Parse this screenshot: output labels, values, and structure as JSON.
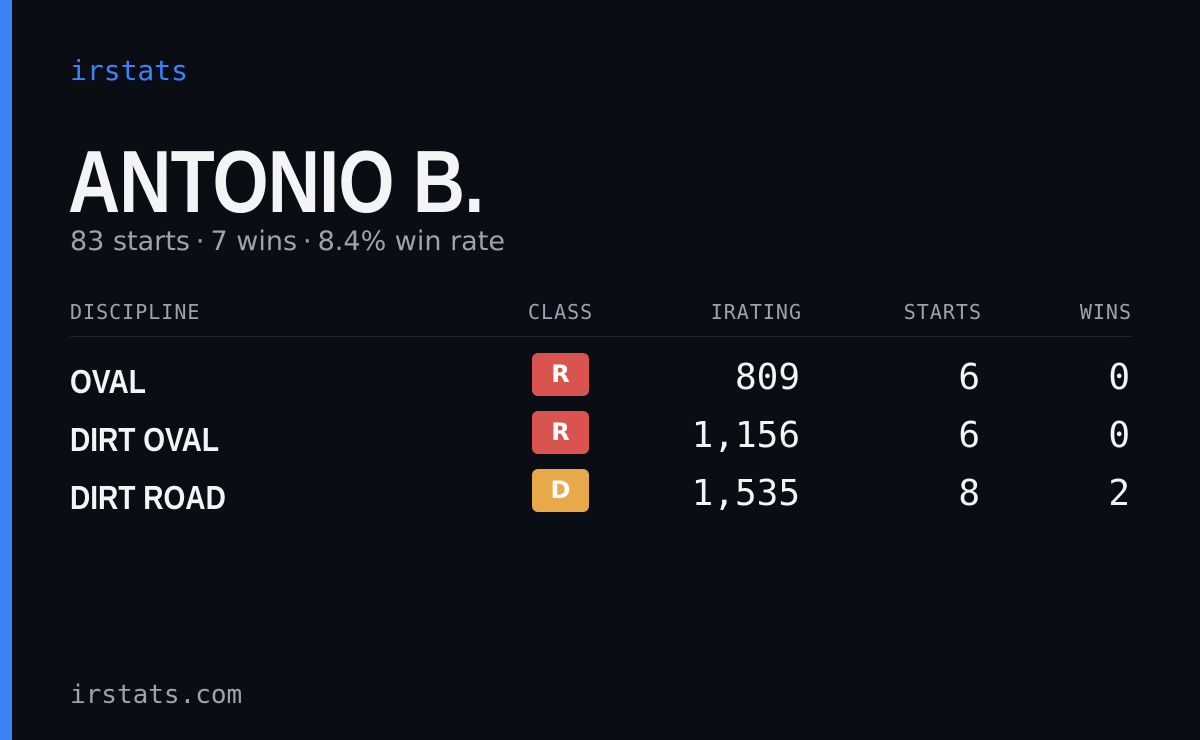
{
  "brand": "irstats",
  "driver": {
    "name": "ANTONIO B.",
    "starts": "83 starts",
    "wins": "7 wins",
    "win_rate": "8.4% win rate",
    "separator": "·"
  },
  "table": {
    "headers": {
      "discipline": "DISCIPLINE",
      "class": "CLASS",
      "irating": "IRATING",
      "starts": "STARTS",
      "wins": "WINS"
    },
    "rows": [
      {
        "discipline": "OVAL",
        "class": "R",
        "class_color": "#d9534f",
        "irating": "809",
        "starts": "6",
        "wins": "0"
      },
      {
        "discipline": "DIRT OVAL",
        "class": "R",
        "class_color": "#d9534f",
        "irating": "1,156",
        "starts": "6",
        "wins": "0"
      },
      {
        "discipline": "DIRT ROAD",
        "class": "D",
        "class_color": "#e8a94b",
        "irating": "1,535",
        "starts": "8",
        "wins": "2"
      }
    ]
  },
  "footer": "irstats.com",
  "colors": {
    "accent": "#3b82f6",
    "background": "#0a0d14",
    "class_r": "#d9534f",
    "class_d": "#e8a94b"
  }
}
